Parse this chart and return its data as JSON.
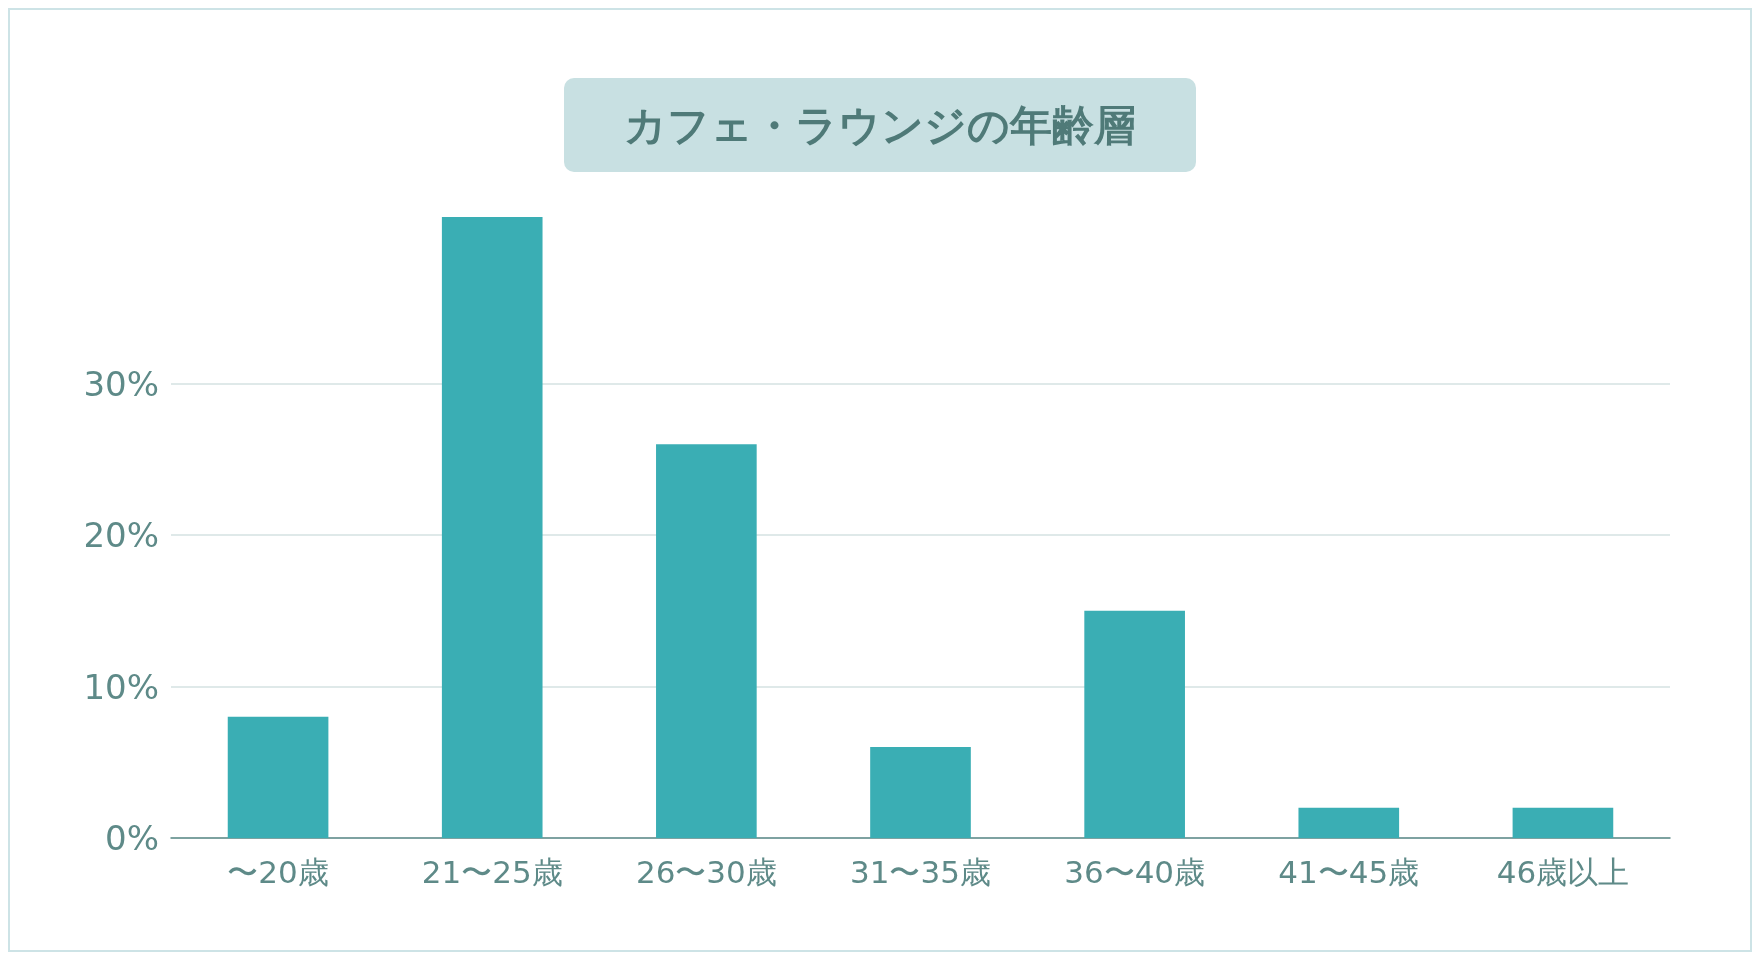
{
  "chart_data": {
    "type": "bar",
    "title": "カフェ・ラウンジの年齢層",
    "categories": [
      "〜20歳",
      "21〜25歳",
      "26〜30歳",
      "31〜35歳",
      "36〜40歳",
      "41〜45歳",
      "46歳以上"
    ],
    "values": [
      8,
      41,
      26,
      6,
      15,
      2,
      2
    ],
    "color": "#3aaeb4",
    "ylim": [
      0,
      41
    ],
    "yticks": [
      {
        "value": 0,
        "label": "0%"
      },
      {
        "value": 10,
        "label": "10%"
      },
      {
        "value": 20,
        "label": "20%"
      },
      {
        "value": 30,
        "label": "30%"
      }
    ],
    "grid": "y"
  }
}
